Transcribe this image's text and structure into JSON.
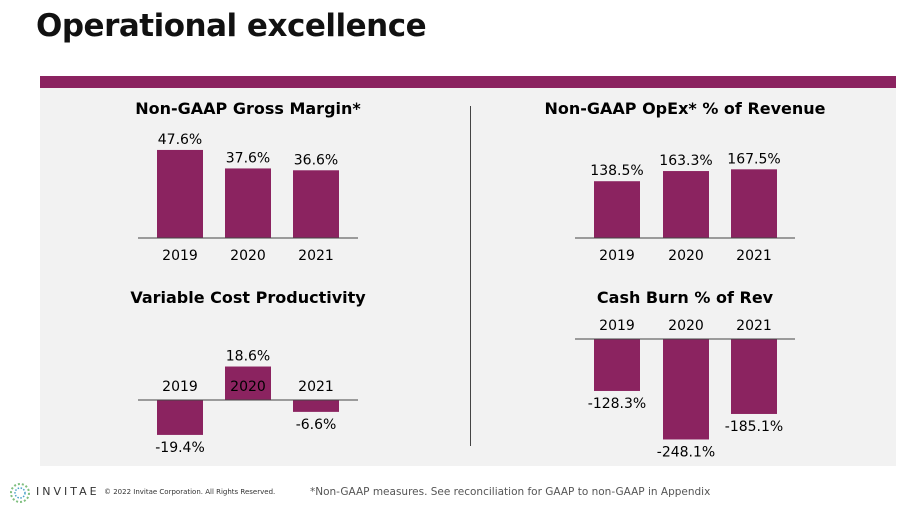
{
  "page": {
    "title": "Operational excellence",
    "footer": {
      "brand": "INVITAE",
      "copyright": "© 2022 Invitae Corporation. All Rights Reserved.",
      "note": "*Non-GAAP measures. See reconciliation for GAAP to non-GAAP in Appendix"
    }
  },
  "colors": {
    "accent": "#8b2360",
    "panel": "#f2f2f2"
  },
  "chart_data": [
    {
      "type": "bar",
      "title": "Non-GAAP Gross Margin*",
      "categories": [
        "2019",
        "2020",
        "2021"
      ],
      "values": [
        47.6,
        37.6,
        36.6
      ],
      "value_labels": [
        "47.6%",
        "37.6%",
        "36.6%"
      ],
      "category_labels_position": "below"
    },
    {
      "type": "bar",
      "title": "Non-GAAP OpEx* % of Revenue",
      "categories": [
        "2019",
        "2020",
        "2021"
      ],
      "values": [
        138.5,
        163.3,
        167.5
      ],
      "value_labels": [
        "138.5%",
        "163.3%",
        "167.5%"
      ],
      "category_labels_position": "below"
    },
    {
      "type": "bar",
      "title": "Variable Cost Productivity",
      "categories": [
        "2019",
        "2020",
        "2021"
      ],
      "values": [
        -19.4,
        18.6,
        -6.6
      ],
      "value_labels": [
        "-19.4%",
        "18.6%",
        "-6.6%"
      ],
      "category_labels_position": "above"
    },
    {
      "type": "bar",
      "title": "Cash Burn % of Rev",
      "categories": [
        "2019",
        "2020",
        "2021"
      ],
      "values": [
        -128.3,
        -248.1,
        -185.1
      ],
      "value_labels": [
        "-128.3%",
        "-248.1%",
        "-185.1%"
      ],
      "category_labels_position": "above"
    }
  ]
}
